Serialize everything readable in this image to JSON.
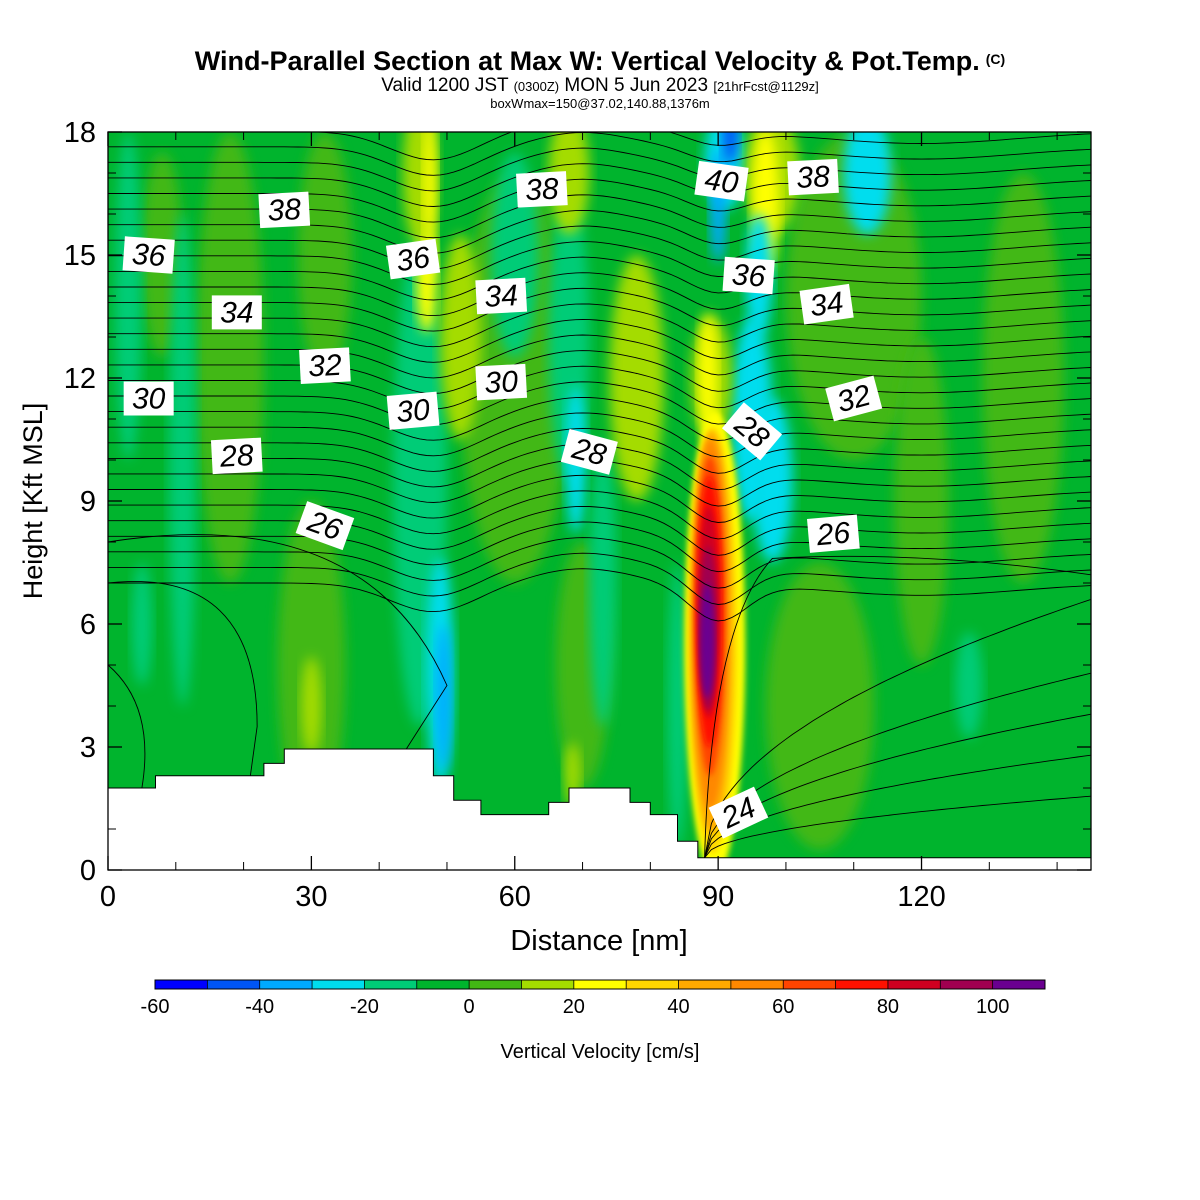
{
  "title": {
    "main": "Wind-Parallel Section at Max W: Vertical Velocity & Pot.Temp.",
    "copyright": "(C)",
    "valid_prefix": "Valid 1200 JST",
    "valid_utc": "(0300Z)",
    "valid_date": "MON 5 Jun 2023",
    "forecast": "[21hrFcst@1129z]",
    "box": "boxWmax=150@37.02,140.88,1376m"
  },
  "chart_data": {
    "type": "heatmap",
    "xlabel": "Distance [nm]",
    "ylabel": "Height [Kft MSL]",
    "xlim": [
      0,
      145
    ],
    "ylim": [
      0,
      18
    ],
    "x_ticks": [
      0,
      30,
      60,
      90,
      120
    ],
    "y_ticks": [
      0,
      3,
      6,
      9,
      12,
      15,
      18
    ],
    "colorbar": {
      "label": "Vertical Velocity [cm/s]",
      "ticks": [
        -60,
        -40,
        -20,
        0,
        20,
        40,
        60,
        80,
        100
      ],
      "bounds": [
        -60,
        -50,
        -40,
        -30,
        -20,
        -10,
        0,
        10,
        20,
        30,
        40,
        50,
        60,
        70,
        80,
        90,
        100,
        110
      ],
      "colors": [
        "#0000ff",
        "#0055f5",
        "#00aaff",
        "#00ddee",
        "#00cc77",
        "#00b42d",
        "#42b814",
        "#a4dc00",
        "#ffff00",
        "#ffd700",
        "#ffaa00",
        "#ff8800",
        "#ff4400",
        "#ff1100",
        "#d00020",
        "#a00050",
        "#6a0090"
      ]
    },
    "terrain_kft": [
      [
        0,
        2.0
      ],
      [
        7,
        2.0
      ],
      [
        7,
        2.3
      ],
      [
        23,
        2.3
      ],
      [
        23,
        2.6
      ],
      [
        26,
        2.6
      ],
      [
        26,
        2.95
      ],
      [
        48,
        2.95
      ],
      [
        48,
        2.3
      ],
      [
        51,
        2.3
      ],
      [
        51,
        1.7
      ],
      [
        55,
        1.7
      ],
      [
        55,
        1.35
      ],
      [
        65,
        1.35
      ],
      [
        65,
        1.65
      ],
      [
        68,
        1.65
      ],
      [
        68,
        2.0
      ],
      [
        77,
        2.0
      ],
      [
        77,
        1.65
      ],
      [
        80,
        1.65
      ],
      [
        80,
        1.35
      ],
      [
        84,
        1.35
      ],
      [
        84,
        0.7
      ],
      [
        87,
        0.7
      ],
      [
        87,
        0.3
      ],
      [
        145,
        0.3
      ]
    ],
    "pot_temp_labels": [
      {
        "value": "38",
        "x": 26,
        "y": 16.1,
        "angle": -3
      },
      {
        "value": "38",
        "x": 64,
        "y": 16.6,
        "angle": -3
      },
      {
        "value": "40",
        "x": 90.5,
        "y": 16.8,
        "angle": 8
      },
      {
        "value": "38",
        "x": 104,
        "y": 16.9,
        "angle": -3
      },
      {
        "value": "36",
        "x": 6,
        "y": 15.0,
        "angle": 4
      },
      {
        "value": "36",
        "x": 45,
        "y": 14.9,
        "angle": -8
      },
      {
        "value": "36",
        "x": 94.5,
        "y": 14.5,
        "angle": 4
      },
      {
        "value": "34",
        "x": 19,
        "y": 13.6,
        "angle": 0
      },
      {
        "value": "34",
        "x": 58,
        "y": 14.0,
        "angle": -3
      },
      {
        "value": "34",
        "x": 106,
        "y": 13.8,
        "angle": -8
      },
      {
        "value": "32",
        "x": 32,
        "y": 12.3,
        "angle": -3
      },
      {
        "value": "32",
        "x": 110,
        "y": 11.5,
        "angle": -15
      },
      {
        "value": "30",
        "x": 6,
        "y": 11.5,
        "angle": 0
      },
      {
        "value": "30",
        "x": 45,
        "y": 11.2,
        "angle": -5
      },
      {
        "value": "30",
        "x": 58,
        "y": 11.9,
        "angle": -3
      },
      {
        "value": "28",
        "x": 19,
        "y": 10.1,
        "angle": -3
      },
      {
        "value": "28",
        "x": 71,
        "y": 10.2,
        "angle": 15
      },
      {
        "value": "28",
        "x": 95,
        "y": 10.7,
        "angle": 40
      },
      {
        "value": "26",
        "x": 32,
        "y": 8.4,
        "angle": 20
      },
      {
        "value": "26",
        "x": 107,
        "y": 8.2,
        "angle": -5
      },
      {
        "value": "24",
        "x": 93,
        "y": 1.4,
        "angle": -25
      }
    ]
  }
}
